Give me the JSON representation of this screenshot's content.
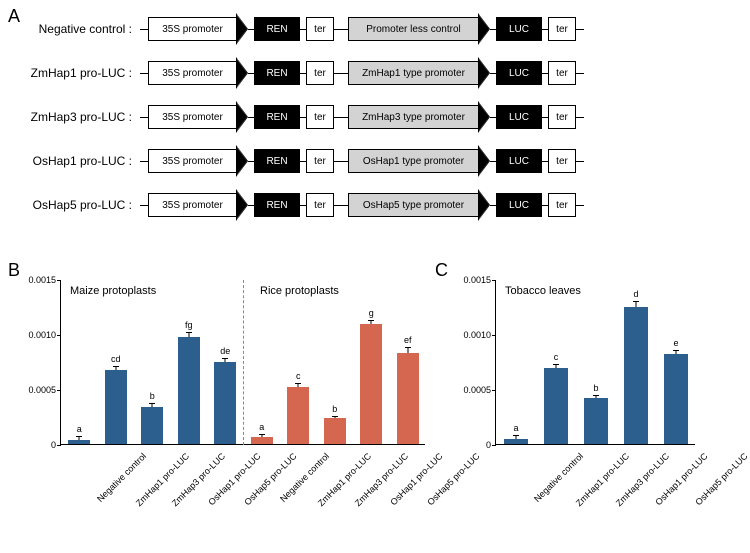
{
  "panelA": {
    "label": "A",
    "constructs": [
      {
        "label": "Negative control :",
        "promoter2_text": "Promoter less control"
      },
      {
        "label": "ZmHap1 pro-LUC :",
        "promoter2_text": "ZmHap1 type promoter"
      },
      {
        "label": "ZmHap3 pro-LUC :",
        "promoter2_text": "ZmHap3 type promoter"
      },
      {
        "label": "OsHap1 pro-LUC :",
        "promoter2_text": "OsHap1 type promoter"
      },
      {
        "label": "OsHap5 pro-LUC :",
        "promoter2_text": "OsHap5 type promoter"
      }
    ],
    "promoter1_text": "35S promoter",
    "ren_text": "REN",
    "luc_text": "LUC",
    "ter_text": "ter",
    "colors": {
      "white_bg": "#ffffff",
      "black_bg": "#000000",
      "grey_bg": "#d3d3d3",
      "black_text": "#000000",
      "white_text": "#ffffff"
    }
  },
  "panelB": {
    "label": "B",
    "title_left": "Maize protoplasts",
    "title_right": "Rice protoplasts",
    "ylim": [
      0,
      0.0015
    ],
    "yticks": [
      0,
      0.0005,
      0.001,
      0.0015
    ],
    "ytick_labels": [
      "0",
      "0.0005",
      "0.0010",
      "0.0015"
    ],
    "bars_left": {
      "color": "#2d5f8e",
      "categories": [
        "Negative control",
        "ZmHap1 pro-LUC",
        "ZmHap3 pro-LUC",
        "OsHap1 pro-LUC",
        "OsHap5 pro-LUC"
      ],
      "values": [
        4e-05,
        0.00067,
        0.00034,
        0.00097,
        0.00075
      ],
      "errors": [
        2e-05,
        3e-05,
        2e-05,
        4e-05,
        2e-05
      ],
      "letters": [
        "a",
        "cd",
        "b",
        "fg",
        "de"
      ]
    },
    "bars_right": {
      "color": "#d5664f",
      "categories": [
        "Negative control",
        "ZmHap1 pro-LUC",
        "ZmHap3 pro-LUC",
        "OsHap1 pro-LUC",
        "OsHap5 pro-LUC"
      ],
      "values": [
        6e-05,
        0.00052,
        0.00024,
        0.00109,
        0.00083
      ],
      "errors": [
        2e-05,
        3e-05,
        1e-05,
        3e-05,
        4e-05
      ],
      "letters": [
        "a",
        "c",
        "b",
        "g",
        "ef"
      ]
    }
  },
  "panelC": {
    "label": "C",
    "title": "Tobacco leaves",
    "ylim": [
      0,
      0.0015
    ],
    "yticks": [
      0,
      0.0005,
      0.001,
      0.0015
    ],
    "ytick_labels": [
      "0",
      "0.0005",
      "0.0010",
      "0.0015"
    ],
    "bars": {
      "color": "#2d5f8e",
      "categories": [
        "Negative control",
        "ZmHap1 pro-LUC",
        "ZmHap3 pro-LUC",
        "OsHap1 pro-LUC",
        "OsHap5 pro-LUC"
      ],
      "values": [
        5e-05,
        0.00069,
        0.00042,
        0.00125,
        0.00082
      ],
      "errors": [
        2e-05,
        3e-05,
        2e-05,
        4e-05,
        3e-05
      ],
      "letters": [
        "a",
        "c",
        "b",
        "d",
        "e"
      ]
    }
  }
}
